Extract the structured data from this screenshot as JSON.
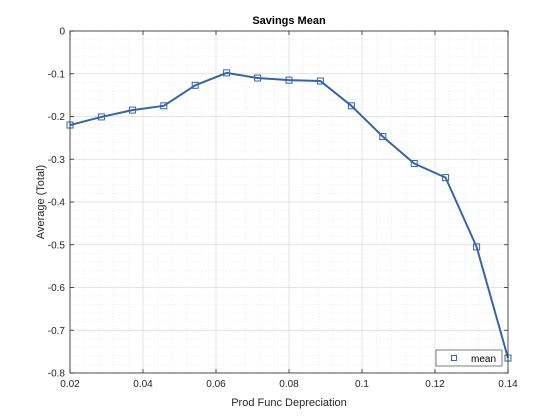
{
  "chart_data": {
    "type": "line",
    "title": "Savings Mean",
    "xlabel": "Prod Func Depreciation",
    "ylabel": "Average (Total)",
    "xlim": [
      0.02,
      0.14
    ],
    "ylim": [
      -0.8,
      0
    ],
    "xticks": [
      0.02,
      0.04,
      0.06,
      0.08,
      0.1,
      0.12,
      0.14
    ],
    "xtick_labels": [
      "0.02",
      "0.04",
      "0.06",
      "0.08",
      "0.1",
      "0.12",
      "0.14"
    ],
    "yticks": [
      0,
      -0.1,
      -0.2,
      -0.3,
      -0.4,
      -0.5,
      -0.6,
      -0.7,
      -0.8
    ],
    "ytick_labels": [
      "0",
      "-0.1",
      "-0.2",
      "-0.3",
      "-0.4",
      "-0.5",
      "-0.6",
      "-0.7",
      "-0.8"
    ],
    "grid": true,
    "minor_grid": true,
    "legend_position": "bottom-right",
    "series": [
      {
        "name": "mean",
        "color": "#3465a4",
        "marker": "square",
        "x": [
          0.02,
          0.0286,
          0.0371,
          0.0457,
          0.0543,
          0.0629,
          0.0714,
          0.08,
          0.0886,
          0.0971,
          0.1057,
          0.1143,
          0.1229,
          0.1314,
          0.14
        ],
        "y": [
          -0.22,
          -0.201,
          -0.185,
          -0.175,
          -0.127,
          -0.098,
          -0.11,
          -0.115,
          -0.117,
          -0.175,
          -0.247,
          -0.31,
          -0.343,
          -0.505,
          -0.765
        ]
      }
    ]
  }
}
